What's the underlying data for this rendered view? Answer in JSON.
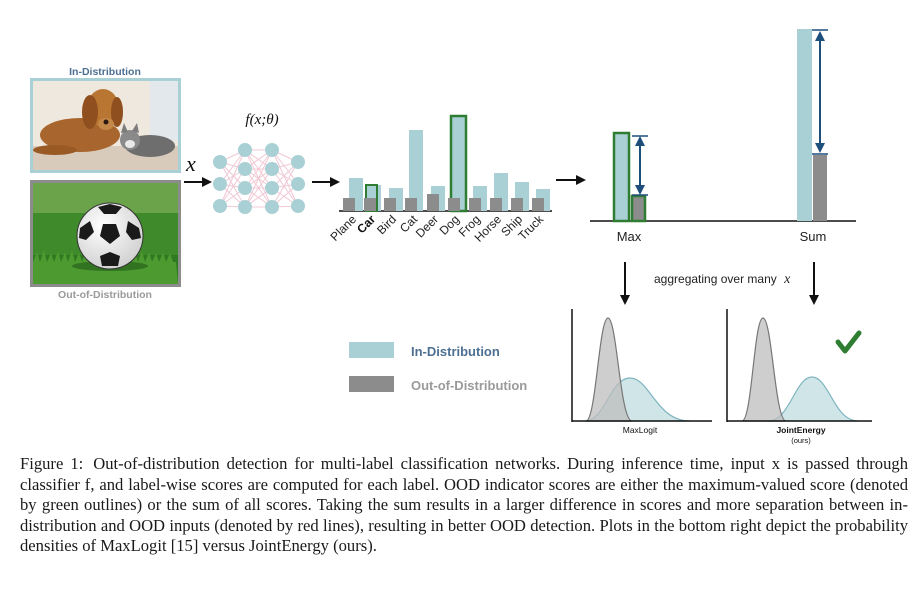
{
  "labels": {
    "in_dist_top": "In-Distribution",
    "out_dist_bottom": "Out-of-Distribution",
    "x_var": "x",
    "func": "f(x;θ)",
    "max": "Max",
    "sum": "Sum",
    "aggregating_prefix": "aggregating over many",
    "aggregating_var": "x",
    "legend_in": "In-Distribution",
    "legend_out": "Out-of-Distribution",
    "plot1": "MaxLogit",
    "plot2": "JointEnergy",
    "plot2_sub": "(ours)"
  },
  "classes": [
    "Plane",
    "Car",
    "Bird",
    "Cat",
    "Deer",
    "Dog",
    "Frog",
    "Horse",
    "Ship",
    "Truck"
  ],
  "highlighted_class": "Car",
  "icons": [
    "dog-cat-photo",
    "soccer-ball-photo",
    "neural-network-icon",
    "check-icon"
  ],
  "colors": {
    "in_dist": "#a8d0d5",
    "in_dist_title": "#4d6f92",
    "out_dist": "#8c8c8c",
    "out_dist_title": "#9a9a9a",
    "max_outline": "#2f7d32",
    "arrow": "#1e4e7c",
    "check": "#2e7d32"
  },
  "caption": {
    "fig_label": "Figure 1:",
    "text": "Out-of-distribution detection for multi-label classification networks. During inference time, input x is passed through classifier f, and label-wise scores are computed for each label. OOD indicator scores are either the maximum-valued score (denoted by green outlines) or the sum of all scores. Taking the sum results in a larger difference in scores and more separation between in-distribution and OOD inputs (denoted by red lines), resulting in better OOD detection. Plots in the bottom right depict the probability densities of MaxLogit [15] versus JointEnergy (ours)."
  }
}
